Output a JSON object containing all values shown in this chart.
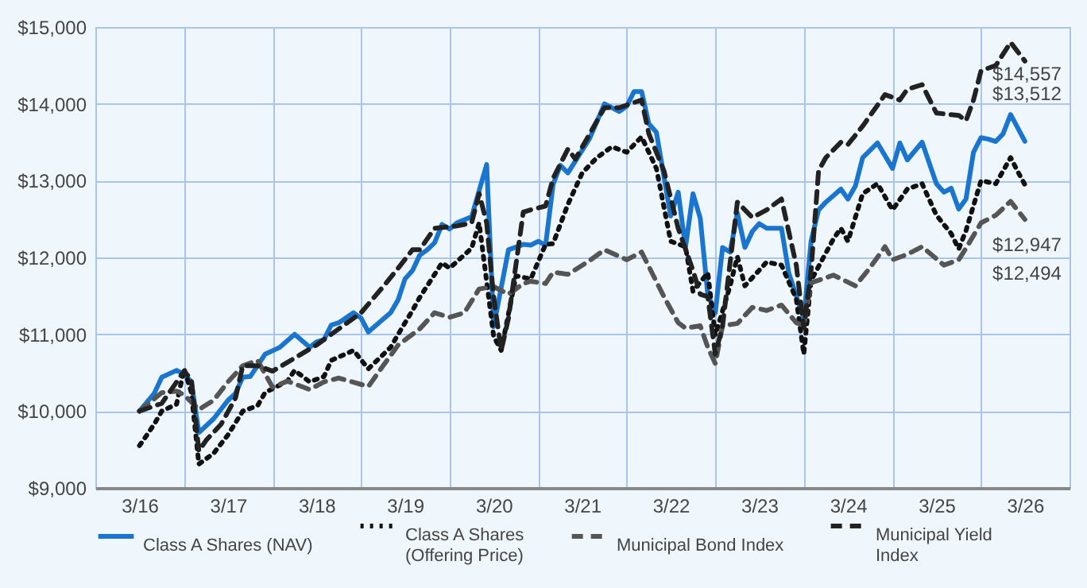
{
  "chart_data": {
    "type": "line",
    "xlim": [
      "2015-09",
      "2026-09"
    ],
    "xticks": [
      {
        "value": "2015-09",
        "label": null
      },
      {
        "value": "2016-03",
        "label": "3/16"
      },
      {
        "value": "2016-09",
        "label": null
      },
      {
        "value": "2017-03",
        "label": "3/17"
      },
      {
        "value": "2017-09",
        "label": null
      },
      {
        "value": "2018-03",
        "label": "3/18"
      },
      {
        "value": "2018-09",
        "label": null
      },
      {
        "value": "2019-03",
        "label": "3/19"
      },
      {
        "value": "2019-09",
        "label": null
      },
      {
        "value": "2020-03",
        "label": "3/20"
      },
      {
        "value": "2020-09",
        "label": null
      },
      {
        "value": "2021-03",
        "label": "3/21"
      },
      {
        "value": "2021-09",
        "label": null
      },
      {
        "value": "2022-03",
        "label": "3/22"
      },
      {
        "value": "2022-09",
        "label": null
      },
      {
        "value": "2023-03",
        "label": "3/23"
      },
      {
        "value": "2023-09",
        "label": null
      },
      {
        "value": "2024-03",
        "label": "3/24"
      },
      {
        "value": "2024-09",
        "label": null
      },
      {
        "value": "2025-03",
        "label": "3/25"
      },
      {
        "value": "2025-09",
        "label": null
      },
      {
        "value": "2026-03",
        "label": "3/26"
      },
      {
        "value": "2026-09",
        "label": null
      }
    ],
    "ylim": [
      9000,
      15000
    ],
    "yticks": [
      {
        "value": 9000,
        "label": "$9,000"
      },
      {
        "value": 10000,
        "label": "$10,000"
      },
      {
        "value": 11000,
        "label": "$11,000"
      },
      {
        "value": 12000,
        "label": "$12,000"
      },
      {
        "value": 13000,
        "label": "$13,000"
      },
      {
        "value": 14000,
        "label": "$14,000"
      },
      {
        "value": 15000,
        "label": "$15,000"
      }
    ],
    "grid": true,
    "legend": "bottom",
    "marker": "none",
    "series": [
      {
        "name": "Class A Shares (NAV)",
        "color": "#1a75cf",
        "line_style": "solid",
        "x": [
          "2016-03",
          "2016-05",
          "2016-06",
          "2016-08",
          "2016-09",
          "2016-10",
          "2016-11",
          "2017-01",
          "2017-03",
          "2017-04",
          "2017-05",
          "2017-06",
          "2017-08",
          "2017-10",
          "2017-12",
          "2018-02",
          "2018-03",
          "2018-04",
          "2018-05",
          "2018-06",
          "2018-08",
          "2018-09",
          "2018-10",
          "2019-01",
          "2019-02",
          "2019-03",
          "2019-04",
          "2019-05",
          "2019-06",
          "2019-07",
          "2019-08",
          "2019-09",
          "2019-10",
          "2019-12",
          "2020-02",
          "2020-03",
          "2020-05",
          "2020-07",
          "2020-08",
          "2020-09",
          "2020-10",
          "2020-11",
          "2020-12",
          "2021-01",
          "2021-04",
          "2021-06",
          "2021-08",
          "2021-09",
          "2021-10",
          "2021-11",
          "2021-12",
          "2022-01",
          "2022-03",
          "2022-04",
          "2022-05",
          "2022-06",
          "2022-07",
          "2022-08",
          "2022-09",
          "2022-10",
          "2022-11",
          "2022-12",
          "2023-01",
          "2023-02",
          "2023-03",
          "2023-04",
          "2023-06",
          "2023-07",
          "2023-09",
          "2023-10",
          "2023-11",
          "2023-12",
          "2024-02",
          "2024-03",
          "2024-04",
          "2024-05",
          "2024-07",
          "2024-09",
          "2024-10",
          "2024-11",
          "2025-01",
          "2025-03",
          "2025-04",
          "2025-05",
          "2025-06",
          "2025-07",
          "2025-08",
          "2025-09",
          "2025-10",
          "2025-11",
          "2025-12",
          "2026-01",
          "2026-03"
        ],
        "values": [
          10000,
          10230,
          10440,
          10530,
          10480,
          10380,
          9720,
          9900,
          10140,
          10230,
          10440,
          10450,
          10740,
          10830,
          11000,
          10830,
          10900,
          10930,
          11120,
          11150,
          11280,
          11210,
          11030,
          11280,
          11450,
          11720,
          11830,
          12030,
          12100,
          12190,
          12430,
          12370,
          12450,
          12530,
          13210,
          11100,
          12100,
          12170,
          12160,
          12210,
          12160,
          12950,
          13200,
          13100,
          13550,
          14000,
          13900,
          13970,
          14160,
          14160,
          13740,
          13630,
          12540,
          12850,
          12130,
          12830,
          12510,
          11520,
          11280,
          12130,
          12070,
          12580,
          12130,
          12340,
          12440,
          12380,
          12380,
          11800,
          11200,
          12210,
          12620,
          12720,
          12890,
          12760,
          12930,
          13300,
          13490,
          13160,
          13490,
          13270,
          13500,
          12960,
          12850,
          12900,
          12630,
          12760,
          13370,
          13560,
          13540,
          13510,
          13610,
          13860,
          13512
        ]
      },
      {
        "name": "Class A Shares (Offering Price)",
        "color": "#111111",
        "line_style": "dotted",
        "x": [
          "2016-03",
          "2016-04",
          "2016-05",
          "2016-06",
          "2016-08",
          "2016-09",
          "2016-10",
          "2016-11",
          "2017-01",
          "2017-03",
          "2017-05",
          "2017-07",
          "2017-08",
          "2017-11",
          "2017-12",
          "2018-02",
          "2018-04",
          "2018-05",
          "2018-08",
          "2018-10",
          "2019-01",
          "2019-02",
          "2019-04",
          "2019-05",
          "2019-08",
          "2019-09",
          "2019-12",
          "2020-01",
          "2020-03",
          "2020-04",
          "2020-06",
          "2020-08",
          "2020-10",
          "2020-11",
          "2021-01",
          "2021-03",
          "2021-05",
          "2021-07",
          "2021-09",
          "2021-11",
          "2022-01",
          "2022-03",
          "2022-05",
          "2022-06",
          "2022-08",
          "2022-09",
          "2022-11",
          "2022-12",
          "2023-01",
          "2023-04",
          "2023-06",
          "2023-08",
          "2023-09",
          "2023-10",
          "2024-01",
          "2024-02",
          "2024-03",
          "2024-05",
          "2024-07",
          "2024-09",
          "2024-11",
          "2025-01",
          "2025-03",
          "2025-05",
          "2025-06",
          "2025-07",
          "2025-09",
          "2025-11",
          "2026-01",
          "2026-02",
          "2026-03"
        ],
        "values": [
          9550,
          9690,
          9830,
          10000,
          10090,
          10550,
          10240,
          9310,
          9450,
          9690,
          10000,
          10070,
          10240,
          10390,
          10530,
          10380,
          10450,
          10660,
          10790,
          10550,
          10830,
          11000,
          11310,
          11480,
          11930,
          11860,
          12120,
          12450,
          10970,
          10790,
          11760,
          11720,
          12170,
          12180,
          12690,
          13100,
          13300,
          13440,
          13370,
          13570,
          13160,
          12210,
          12140,
          11560,
          11800,
          10990,
          11630,
          12010,
          11630,
          11940,
          11900,
          11460,
          10740,
          11700,
          12240,
          12380,
          12210,
          12830,
          12960,
          12620,
          12890,
          12960,
          12550,
          12310,
          12110,
          12350,
          13000,
          12960,
          13300,
          13110,
          12947
        ]
      },
      {
        "name": "Municipal Bond Index",
        "color": "#555555",
        "line_style": "dashed",
        "x": [
          "2016-03",
          "2016-06",
          "2016-08",
          "2016-09",
          "2016-11",
          "2017-01",
          "2017-03",
          "2017-05",
          "2017-07",
          "2017-09",
          "2017-11",
          "2018-02",
          "2018-04",
          "2018-06",
          "2018-10",
          "2018-12",
          "2019-02",
          "2019-05",
          "2019-07",
          "2019-09",
          "2019-11",
          "2020-01",
          "2020-03",
          "2020-05",
          "2020-07",
          "2020-08",
          "2020-10",
          "2020-11",
          "2021-01",
          "2021-04",
          "2021-06",
          "2021-09",
          "2021-11",
          "2022-02",
          "2022-04",
          "2022-05",
          "2022-07",
          "2022-08",
          "2022-09",
          "2022-10",
          "2022-12",
          "2023-02",
          "2023-04",
          "2023-06",
          "2023-08",
          "2023-09",
          "2023-10",
          "2024-01",
          "2024-04",
          "2024-06",
          "2024-08",
          "2024-09",
          "2024-11",
          "2025-01",
          "2025-04",
          "2025-06",
          "2025-07",
          "2025-09",
          "2025-11",
          "2026-01",
          "2026-03"
        ],
        "values": [
          10000,
          10240,
          10260,
          10210,
          10020,
          10140,
          10380,
          10590,
          10660,
          10310,
          10390,
          10280,
          10380,
          10430,
          10320,
          10590,
          10860,
          11070,
          11280,
          11220,
          11280,
          11590,
          11620,
          11520,
          11660,
          11690,
          11660,
          11810,
          11780,
          11960,
          12100,
          11970,
          12070,
          11490,
          11150,
          11080,
          11110,
          10830,
          10620,
          11110,
          11140,
          11350,
          11310,
          11380,
          11150,
          11110,
          11670,
          11770,
          11630,
          11870,
          12140,
          11970,
          12040,
          12140,
          11900,
          11970,
          12120,
          12450,
          12550,
          12730,
          12494
        ]
      },
      {
        "name": "Municipal Yield Index",
        "color": "#222222",
        "line_style": "dashed",
        "x": [
          "2016-03",
          "2016-06",
          "2016-09",
          "2016-10",
          "2016-11",
          "2016-12",
          "2017-02",
          "2017-04",
          "2017-05",
          "2017-07",
          "2017-09",
          "2017-12",
          "2018-03",
          "2018-06",
          "2018-09",
          "2018-12",
          "2019-02",
          "2019-04",
          "2019-05",
          "2019-07",
          "2019-10",
          "2019-12",
          "2020-01",
          "2020-02",
          "2020-03",
          "2020-04",
          "2020-05",
          "2020-07",
          "2020-08",
          "2020-10",
          "2020-11",
          "2021-01",
          "2021-02",
          "2021-04",
          "2021-06",
          "2021-08",
          "2021-11",
          "2021-12",
          "2022-02",
          "2022-04",
          "2022-06",
          "2022-07",
          "2022-08",
          "2022-09",
          "2022-10",
          "2022-12",
          "2023-02",
          "2023-04",
          "2023-06",
          "2023-08",
          "2023-09",
          "2023-10",
          "2023-11",
          "2023-12",
          "2024-02",
          "2024-03",
          "2024-05",
          "2024-08",
          "2024-10",
          "2024-11",
          "2025-01",
          "2025-03",
          "2025-06",
          "2025-07",
          "2025-08",
          "2025-09",
          "2025-11",
          "2026-01",
          "2026-03"
        ],
        "values": [
          10000,
          10100,
          10520,
          10410,
          9480,
          9620,
          9830,
          10170,
          10590,
          10590,
          10520,
          10690,
          10860,
          11070,
          11280,
          11620,
          11860,
          12100,
          12100,
          12380,
          12410,
          12450,
          12830,
          12450,
          11480,
          10790,
          11210,
          12590,
          12620,
          12670,
          13030,
          13410,
          13280,
          13610,
          13950,
          13950,
          14050,
          13610,
          13130,
          12380,
          11830,
          11520,
          11490,
          10740,
          11110,
          12720,
          12520,
          12620,
          12760,
          11900,
          11080,
          11830,
          13130,
          13300,
          13500,
          13470,
          13710,
          14120,
          14050,
          14190,
          14250,
          13880,
          13850,
          13780,
          14050,
          14430,
          14500,
          14800,
          14557
        ]
      }
    ],
    "annotations": [
      {
        "text": "$14,557",
        "x": "2026-03",
        "y": 14557
      },
      {
        "text": "$13,512",
        "x": "2026-03",
        "y": 13512
      },
      {
        "text": "$12,947",
        "x": "2026-03",
        "y": 12947
      },
      {
        "text": "$12,494",
        "x": "2026-03",
        "y": 12494
      }
    ]
  }
}
